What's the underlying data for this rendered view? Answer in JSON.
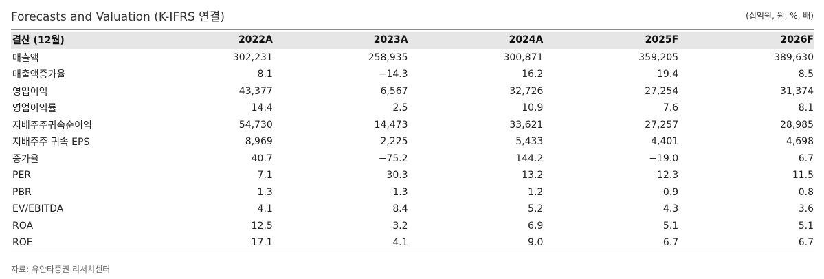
{
  "header": {
    "title": "Forecasts and Valuation (K-IFRS 연결)",
    "unit": "(십억원, 원, %, 배)"
  },
  "table": {
    "columns": [
      "결산 (12월)",
      "2022A",
      "2023A",
      "2024A",
      "2025F",
      "2026F"
    ],
    "rows": [
      {
        "label": "매출액",
        "values": [
          "302,231",
          "258,935",
          "300,871",
          "359,205",
          "389,630"
        ]
      },
      {
        "label": "매출액증가율",
        "values": [
          "8.1",
          "−14.3",
          "16.2",
          "19.4",
          "8.5"
        ]
      },
      {
        "label": "영업이익",
        "values": [
          "43,377",
          "6,567",
          "32,726",
          "27,254",
          "31,374"
        ]
      },
      {
        "label": "영업이익률",
        "values": [
          "14.4",
          "2.5",
          "10.9",
          "7.6",
          "8.1"
        ]
      },
      {
        "label": "지배주주귀속순이익",
        "values": [
          "54,730",
          "14,473",
          "33,621",
          "27,257",
          "28,985"
        ]
      },
      {
        "label": "지배주주 귀속 EPS",
        "values": [
          "8,969",
          "2,225",
          "5,433",
          "4,401",
          "4,698"
        ]
      },
      {
        "label": "증가율",
        "values": [
          "40.7",
          "−75.2",
          "144.2",
          "−19.0",
          "6.7"
        ]
      },
      {
        "label": "PER",
        "values": [
          "7.1",
          "30.3",
          "13.2",
          "12.3",
          "11.5"
        ]
      },
      {
        "label": "PBR",
        "values": [
          "1.3",
          "1.3",
          "1.2",
          "0.9",
          "0.8"
        ]
      },
      {
        "label": "EV/EBITDA",
        "values": [
          "4.1",
          "8.4",
          "5.2",
          "4.3",
          "3.6"
        ]
      },
      {
        "label": "ROA",
        "values": [
          "12.5",
          "3.2",
          "6.9",
          "5.1",
          "5.1"
        ]
      },
      {
        "label": "ROE",
        "values": [
          "17.1",
          "4.1",
          "9.0",
          "6.7",
          "6.7"
        ]
      }
    ]
  },
  "footer": {
    "source": "자료: 유안타증권 리서치센터"
  }
}
